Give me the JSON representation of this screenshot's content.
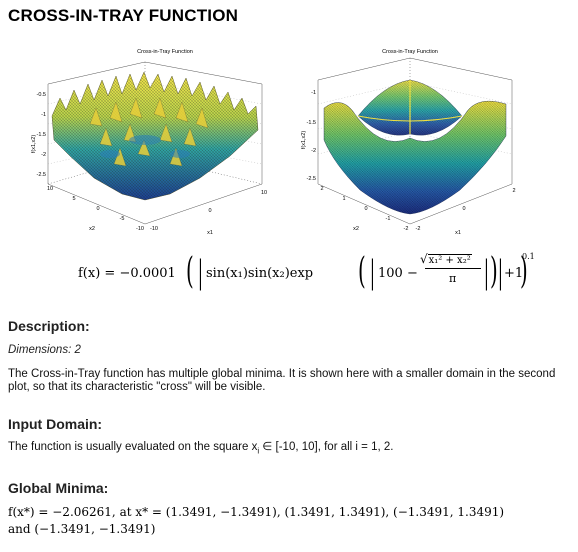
{
  "title": "CROSS-IN-TRAY FUNCTION",
  "plots": [
    {
      "title": "Cross-in-Tray Function",
      "zlabel": "f(x1,x2)",
      "xlabel": "x1",
      "ylabel": "x2",
      "z_ticks": [
        "-0.5",
        "-1",
        "-1.5",
        "-2",
        "-2.5"
      ],
      "x_ticks": [
        "-10",
        "0",
        "10"
      ],
      "y_ticks": [
        "10",
        "5",
        "0",
        "-5",
        "-10"
      ]
    },
    {
      "title": "Cross-in-Tray Function",
      "zlabel": "f(x1,x2)",
      "xlabel": "x1",
      "ylabel": "x2",
      "z_ticks": [
        "-1",
        "-1.5",
        "-2",
        "-2.5"
      ],
      "x_ticks": [
        "-2",
        "0",
        "2"
      ],
      "y_ticks": [
        "2",
        "1",
        "0",
        "-1",
        "-2"
      ]
    }
  ],
  "formula": {
    "lhs": "f(x) = −0.0001",
    "sin_part": "sin(x₁)sin(x₂)exp",
    "hundred": "100 −",
    "sqrt_content": "x₁² + x₂²",
    "denominator": "π",
    "plus_one": "+1",
    "exponent": "0.1"
  },
  "description": {
    "heading": "Description:",
    "dimensions": "Dimensions: 2",
    "text": "The Cross-in-Tray function has multiple global minima. It is shown here with a smaller domain in the second plot, so that its characteristic \"cross\" will be visible."
  },
  "input_domain": {
    "heading": "Input Domain:",
    "text_before": "The function is usually evaluated on the square x",
    "subscript": "i",
    "text_after": " ∈ [-10, 10], for all i = 1, 2."
  },
  "global_minima": {
    "heading": "Global Minima:",
    "line1": "f(x*) = −2.06261, at x* = (1.3491, −1.3491), (1.3491, 1.3491), (−1.3491, 1.3491)",
    "line2": "and (−1.3491, −1.3491)"
  }
}
